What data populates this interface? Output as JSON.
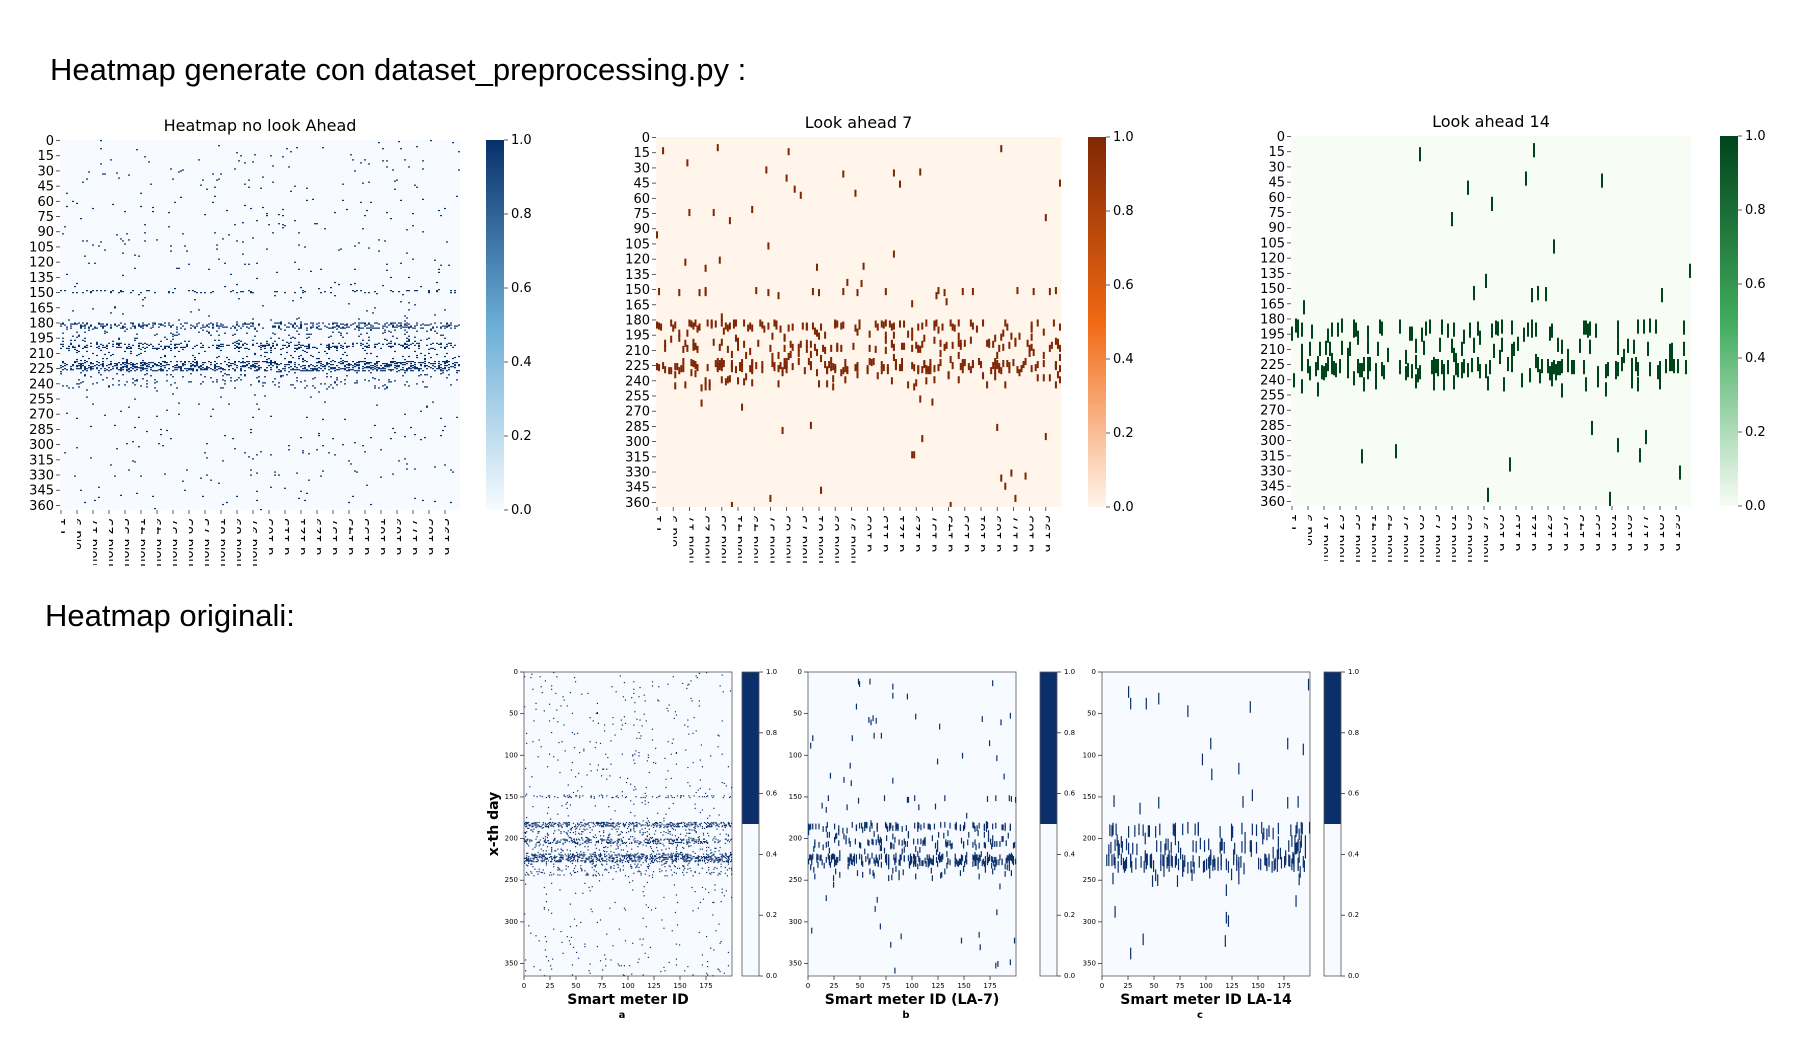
{
  "headings": {
    "top": "Heatmap generate  con dataset_preprocessing.py :",
    "bottom": "Heatmap originali:"
  },
  "chart_data": [
    {
      "id": "gen-nolook",
      "type": "heatmap",
      "title": "Heatmap no look Ahead",
      "colormap": "Blues",
      "colors": {
        "low": "#f7fbff",
        "high": "#08306b",
        "mid": "#6baed6"
      },
      "mark_width_cols": 1,
      "mark_height_rows": 1,
      "y_tick_labels": [
        "0",
        "15",
        "30",
        "45",
        "60",
        "75",
        "90",
        "105",
        "120",
        "135",
        "150",
        "165",
        "180",
        "195",
        "210",
        "225",
        "240",
        "255",
        "270",
        "285",
        "300",
        "315",
        "330",
        "345",
        "360"
      ],
      "x_tick_labels": [
        "hold 1",
        "hold 9",
        "hold 17",
        "hold 25",
        "hold 33",
        "hold 41",
        "hold 49",
        "hold 57",
        "hold 65",
        "hold 73",
        "hold 81",
        "hold 89",
        "hold 97",
        "d 105",
        "d 113",
        "d 121",
        "d 129",
        "d 137",
        "d 145",
        "d 153",
        "d 161",
        "d 169",
        "d 177",
        "d 185",
        "d 193"
      ],
      "colorbar_ticks": [
        "0.0",
        "0.2",
        "0.4",
        "0.6",
        "0.8",
        "1.0"
      ],
      "rows": 365,
      "cols": 200,
      "value_range": [
        0,
        1
      ],
      "density_by_day": [
        [
          0,
          180,
          0.008
        ],
        [
          180,
          186,
          0.3
        ],
        [
          186,
          200,
          0.06
        ],
        [
          200,
          206,
          0.22
        ],
        [
          206,
          218,
          0.05
        ],
        [
          218,
          228,
          0.35
        ],
        [
          228,
          245,
          0.06
        ],
        [
          245,
          365,
          0.008
        ]
      ],
      "events": {
        "band_days": [
          148,
          150
        ],
        "band_density": 0.12
      }
    },
    {
      "id": "gen-la7",
      "type": "heatmap",
      "title": "Look ahead 7",
      "colormap": "Oranges",
      "colors": {
        "low": "#fff5eb",
        "high": "#7f2704",
        "mid": "#f16913"
      },
      "mark_width_cols": 1,
      "mark_height_rows": 7,
      "y_tick_labels": [
        "0",
        "15",
        "30",
        "45",
        "60",
        "75",
        "90",
        "105",
        "120",
        "135",
        "150",
        "165",
        "180",
        "195",
        "210",
        "225",
        "240",
        "255",
        "270",
        "285",
        "300",
        "315",
        "330",
        "345",
        "360"
      ],
      "x_tick_labels": [
        "hold 1",
        "hold 9",
        "hold 17",
        "hold 25",
        "hold 33",
        "hold 41",
        "hold 49",
        "hold 57",
        "hold 65",
        "hold 73",
        "hold 81",
        "hold 89",
        "hold 97",
        "d 105",
        "d 113",
        "d 121",
        "d 129",
        "d 137",
        "d 145",
        "d 153",
        "d 161",
        "d 169",
        "d 177",
        "d 185",
        "d 193"
      ],
      "colorbar_ticks": [
        "0.0",
        "0.2",
        "0.4",
        "0.6",
        "0.8",
        "1.0"
      ],
      "rows": 365,
      "cols": 200,
      "value_range": [
        0,
        1
      ],
      "density_by_day": [
        [
          0,
          180,
          0.004
        ],
        [
          180,
          186,
          0.3
        ],
        [
          186,
          200,
          0.06
        ],
        [
          200,
          206,
          0.22
        ],
        [
          206,
          218,
          0.05
        ],
        [
          218,
          228,
          0.35
        ],
        [
          228,
          245,
          0.06
        ],
        [
          245,
          365,
          0.004
        ]
      ],
      "events": {
        "band_days": [
          148,
          150
        ],
        "band_density": 0.12
      }
    },
    {
      "id": "gen-la14",
      "type": "heatmap",
      "title": "Look ahead 14",
      "colormap": "Greens",
      "colors": {
        "low": "#f7fcf5",
        "high": "#00441b",
        "mid": "#41ab5d"
      },
      "mark_width_cols": 1,
      "mark_height_rows": 14,
      "y_tick_labels": [
        "0",
        "15",
        "30",
        "45",
        "60",
        "75",
        "90",
        "105",
        "120",
        "135",
        "150",
        "165",
        "180",
        "195",
        "210",
        "225",
        "240",
        "255",
        "270",
        "285",
        "300",
        "315",
        "330",
        "345",
        "360"
      ],
      "x_tick_labels": [
        "hold 1",
        "hold 9",
        "hold 17",
        "hold 25",
        "hold 33",
        "hold 41",
        "hold 49",
        "hold 57",
        "hold 65",
        "hold 73",
        "hold 81",
        "hold 89",
        "hold 97",
        "d 105",
        "d 113",
        "d 121",
        "d 129",
        "d 137",
        "d 145",
        "d 153",
        "d 161",
        "d 169",
        "d 177",
        "d 185",
        "d 193"
      ],
      "colorbar_ticks": [
        "0.0",
        "0.2",
        "0.4",
        "0.6",
        "0.8",
        "1.0"
      ],
      "rows": 365,
      "cols": 200,
      "value_range": [
        0,
        1
      ],
      "density_by_day": [
        [
          0,
          180,
          0.004
        ],
        [
          180,
          186,
          0.3
        ],
        [
          186,
          200,
          0.06
        ],
        [
          200,
          206,
          0.22
        ],
        [
          206,
          218,
          0.05
        ],
        [
          218,
          228,
          0.35
        ],
        [
          228,
          245,
          0.06
        ],
        [
          245,
          365,
          0.004
        ]
      ],
      "events": {
        "band_days": [
          148,
          150
        ],
        "band_density": 0.12
      }
    },
    {
      "id": "orig-a",
      "type": "heatmap",
      "subtitle": "a",
      "xlabel": "Smart meter ID",
      "ylabel": "x-th day",
      "colors": {
        "low": "#f7fbff",
        "high": "#0b2f6b"
      },
      "colorbar_style": "binary",
      "mark_width_cols": 1,
      "mark_height_rows": 1,
      "y_tick_labels": [
        "0",
        "50",
        "100",
        "150",
        "200",
        "250",
        "300",
        "350"
      ],
      "x_tick_labels": [
        "0",
        "25",
        "50",
        "75",
        "100",
        "125",
        "150",
        "175"
      ],
      "colorbar_ticks": [
        "0.0",
        "0.2",
        "0.4",
        "0.6",
        "0.8",
        "1.0"
      ],
      "rows": 365,
      "cols": 200,
      "density_by_day": [
        [
          0,
          180,
          0.008
        ],
        [
          180,
          186,
          0.3
        ],
        [
          186,
          200,
          0.06
        ],
        [
          200,
          206,
          0.22
        ],
        [
          206,
          218,
          0.05
        ],
        [
          218,
          228,
          0.35
        ],
        [
          228,
          245,
          0.06
        ],
        [
          245,
          365,
          0.008
        ]
      ],
      "events": {
        "band_days": [
          148,
          150
        ],
        "band_density": 0.12
      }
    },
    {
      "id": "orig-b",
      "type": "heatmap",
      "subtitle": "b",
      "xlabel": "Smart meter ID  (LA-7)",
      "ylabel": "",
      "colors": {
        "low": "#f7fbff",
        "high": "#0b2f6b"
      },
      "colorbar_style": "binary",
      "mark_width_cols": 1,
      "mark_height_rows": 7,
      "y_tick_labels": [
        "0",
        "50",
        "100",
        "150",
        "200",
        "250",
        "300",
        "350"
      ],
      "x_tick_labels": [
        "0",
        "25",
        "50",
        "75",
        "100",
        "125",
        "150",
        "175"
      ],
      "colorbar_ticks": [
        "0.0",
        "0.2",
        "0.4",
        "0.6",
        "0.8",
        "1.0"
      ],
      "rows": 365,
      "cols": 200,
      "density_by_day": [
        [
          0,
          180,
          0.004
        ],
        [
          180,
          186,
          0.3
        ],
        [
          186,
          200,
          0.06
        ],
        [
          200,
          206,
          0.22
        ],
        [
          206,
          218,
          0.05
        ],
        [
          218,
          228,
          0.35
        ],
        [
          228,
          245,
          0.06
        ],
        [
          245,
          365,
          0.004
        ]
      ],
      "events": {
        "band_days": [
          148,
          150
        ],
        "band_density": 0.12
      }
    },
    {
      "id": "orig-c",
      "type": "heatmap",
      "subtitle": "c",
      "xlabel": "Smart meter ID  LA-14",
      "ylabel": "",
      "colors": {
        "low": "#f7fbff",
        "high": "#0b2f6b"
      },
      "colorbar_style": "binary",
      "mark_width_cols": 1,
      "mark_height_rows": 14,
      "y_tick_labels": [
        "0",
        "50",
        "100",
        "150",
        "200",
        "250",
        "300",
        "350"
      ],
      "x_tick_labels": [
        "0",
        "25",
        "50",
        "75",
        "100",
        "125",
        "150",
        "175"
      ],
      "colorbar_ticks": [
        "0.0",
        "0.2",
        "0.4",
        "0.6",
        "0.8",
        "1.0"
      ],
      "rows": 365,
      "cols": 200,
      "density_by_day": [
        [
          0,
          180,
          0.004
        ],
        [
          180,
          186,
          0.3
        ],
        [
          186,
          200,
          0.06
        ],
        [
          200,
          206,
          0.22
        ],
        [
          206,
          218,
          0.05
        ],
        [
          218,
          228,
          0.35
        ],
        [
          228,
          245,
          0.06
        ],
        [
          245,
          365,
          0.004
        ]
      ],
      "events": {
        "band_days": [
          148,
          150
        ],
        "band_density": 0.12
      }
    }
  ]
}
